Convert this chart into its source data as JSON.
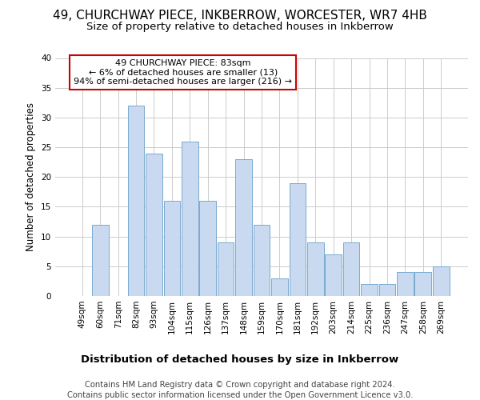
{
  "title1": "49, CHURCHWAY PIECE, INKBERROW, WORCESTER, WR7 4HB",
  "title2": "Size of property relative to detached houses in Inkberrow",
  "xlabel": "Distribution of detached houses by size in Inkberrow",
  "ylabel": "Number of detached properties",
  "categories": [
    "49sqm",
    "60sqm",
    "71sqm",
    "82sqm",
    "93sqm",
    "104sqm",
    "115sqm",
    "126sqm",
    "137sqm",
    "148sqm",
    "159sqm",
    "170sqm",
    "181sqm",
    "192sqm",
    "203sqm",
    "214sqm",
    "225sqm",
    "236sqm",
    "247sqm",
    "258sqm",
    "269sqm"
  ],
  "values": [
    0,
    12,
    0,
    32,
    24,
    16,
    26,
    16,
    9,
    23,
    12,
    3,
    19,
    9,
    7,
    9,
    2,
    2,
    4,
    4,
    5
  ],
  "bar_color": "#c8d9f0",
  "bar_edge_color": "#7aaad0",
  "annotation_box_text": "49 CHURCHWAY PIECE: 83sqm\n← 6% of detached houses are smaller (13)\n94% of semi-detached houses are larger (216) →",
  "annotation_box_color": "#ffffff",
  "annotation_box_edge_color": "#cc0000",
  "footer_line1": "Contains HM Land Registry data © Crown copyright and database right 2024.",
  "footer_line2": "Contains public sector information licensed under the Open Government Licence v3.0.",
  "ylim": [
    0,
    40
  ],
  "background_color": "#ffffff",
  "plot_background": "#ffffff",
  "grid_color": "#cccccc",
  "title1_fontsize": 11,
  "title2_fontsize": 9.5,
  "xlabel_fontsize": 9.5,
  "ylabel_fontsize": 8.5,
  "tick_fontsize": 7.5,
  "footer_fontsize": 7.2
}
